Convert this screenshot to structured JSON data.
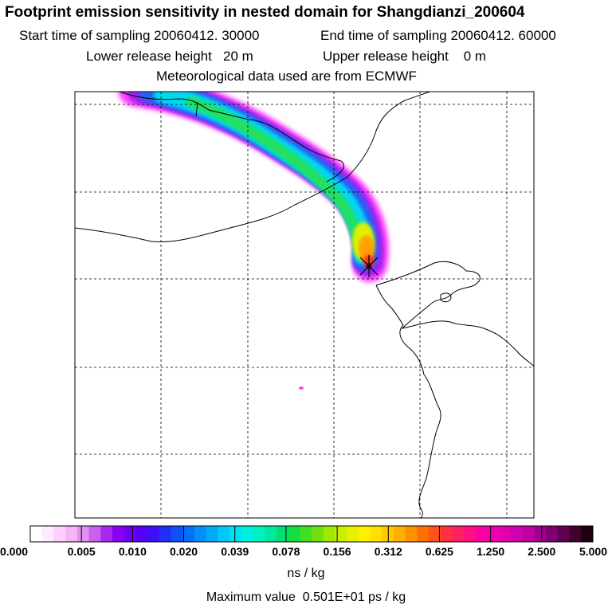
{
  "header": {
    "title": "Footprint emission sensitivity in nested domain for Shangdianzi_200604",
    "start_time": "Start time of sampling 20060412. 30000",
    "end_time": "End time of sampling 20060412. 60000",
    "lower_release": "Lower release height   20 m",
    "upper_release": "Upper release height    0 m",
    "met_data": "Meteorological data used are from ECMWF"
  },
  "colorbar": {
    "tick_labels": [
      "0.000",
      "0.005",
      "0.010",
      "0.020",
      "0.039",
      "0.078",
      "0.156",
      "0.312",
      "0.625",
      "1.250",
      "2.500",
      "5.000"
    ],
    "colors": [
      "#ffffff",
      "#ffeaff",
      "#ffd0ff",
      "#f5b5f5",
      "#e090f0",
      "#c860f0",
      "#a828f0",
      "#8c00f0",
      "#7000f0",
      "#5800f8",
      "#3c10f8",
      "#2030f8",
      "#1050f8",
      "#0070f8",
      "#0090f8",
      "#00aaf8",
      "#00c8f8",
      "#00e0f0",
      "#00f0e0",
      "#00f0c0",
      "#00e8a0",
      "#00e070",
      "#10e040",
      "#40e020",
      "#70e010",
      "#a0e800",
      "#c8f000",
      "#e8f000",
      "#fff000",
      "#ffe000",
      "#ffc800",
      "#ffb000",
      "#ff9000",
      "#ff7000",
      "#ff5020",
      "#ff3040",
      "#ff2060",
      "#ff1080",
      "#ff00a0",
      "#f000b0",
      "#e000b0",
      "#d000b0",
      "#c000a0",
      "#a00090",
      "#800070",
      "#600050",
      "#400030",
      "#200010"
    ],
    "units": "ns / kg",
    "max_value": "Maximum value  0.501E+01 ps / kg"
  },
  "map": {
    "plume_colors": {
      "edge": "#ff40ff",
      "violet": "#a020f0",
      "blue": "#2860f8",
      "cyan": "#00d8f0",
      "green": "#20e060",
      "yellow": "#e0f000",
      "orange": "#ffa000",
      "red": "#ff3020",
      "peak": "#800040"
    }
  }
}
